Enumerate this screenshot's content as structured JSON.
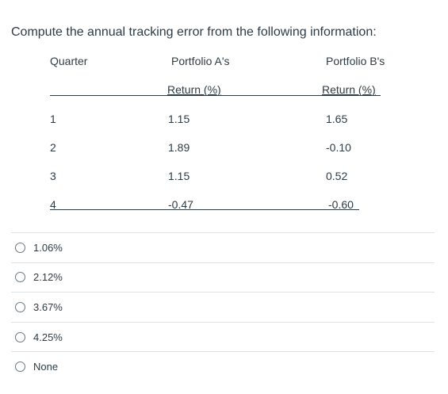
{
  "question": {
    "prompt": "Compute the annual tracking error from the following information:"
  },
  "table": {
    "headers": {
      "quarter": "Quarter",
      "portfolio_a": "Portfolio A's",
      "portfolio_b": "Portfolio B's",
      "return_a": "Return (%)",
      "return_b": "Return (%)"
    },
    "rows": [
      {
        "quarter": "1",
        "a": "1.15",
        "b": "1.65"
      },
      {
        "quarter": "2",
        "a": "1.89",
        "b": "-0.10"
      },
      {
        "quarter": "3",
        "a": "1.15",
        "b": "0.52"
      },
      {
        "quarter": "4",
        "a": "-0.47",
        "b": "-0.60"
      }
    ]
  },
  "answers": [
    {
      "label": "1.06%"
    },
    {
      "label": "2.12%"
    },
    {
      "label": "3.67%"
    },
    {
      "label": "4.25%"
    },
    {
      "label": "None"
    }
  ]
}
